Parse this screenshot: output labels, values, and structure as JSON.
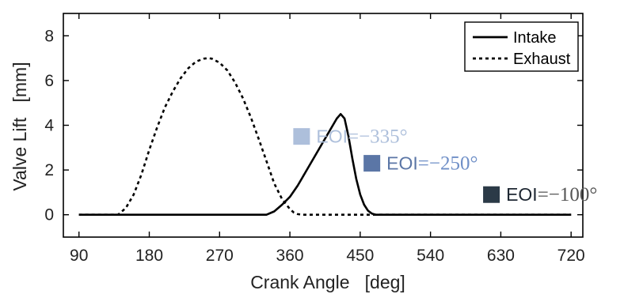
{
  "chart_data": {
    "type": "line",
    "title": "",
    "xlabel": "Crank Angle   [deg]",
    "ylabel": "Valve Lift   [mm]",
    "xlim": [
      70,
      735
    ],
    "ylim": [
      -1,
      9
    ],
    "xticks": [
      90,
      180,
      270,
      360,
      450,
      540,
      630,
      720
    ],
    "yticks": [
      0,
      2,
      4,
      6,
      8
    ],
    "grid": false,
    "legend_position": "top-right",
    "series": [
      {
        "name": "Intake",
        "line_style": "solid",
        "color": "#000000",
        "x": [
          90,
          330,
          340,
          350,
          360,
          370,
          380,
          390,
          400,
          410,
          420,
          425,
          430,
          435,
          440,
          445,
          450,
          455,
          460,
          465,
          470,
          720
        ],
        "y": [
          0,
          0,
          0.15,
          0.45,
          0.8,
          1.3,
          1.9,
          2.5,
          3.1,
          3.7,
          4.3,
          4.5,
          4.3,
          3.5,
          2.5,
          1.6,
          0.9,
          0.45,
          0.18,
          0.05,
          0,
          0
        ]
      },
      {
        "name": "Exhaust",
        "line_style": "dashed",
        "color": "#000000",
        "x": [
          90,
          140,
          150,
          160,
          170,
          180,
          190,
          200,
          210,
          220,
          230,
          240,
          250,
          255,
          260,
          270,
          280,
          290,
          300,
          310,
          320,
          330,
          340,
          350,
          360,
          365,
          370,
          375,
          720
        ],
        "y": [
          0,
          0,
          0.3,
          0.9,
          1.8,
          2.9,
          3.9,
          4.8,
          5.5,
          6.1,
          6.55,
          6.85,
          6.98,
          7.0,
          6.98,
          6.8,
          6.45,
          5.9,
          5.2,
          4.35,
          3.4,
          2.4,
          1.4,
          0.7,
          0.25,
          0.1,
          0.03,
          0,
          0
        ]
      }
    ],
    "annotations": [
      {
        "label": "EOI",
        "value": "=−335°",
        "x": 375,
        "y": 3.5,
        "color": "#adbfdb",
        "text_color": "#adbfdb",
        "value_color": "#adbfdb"
      },
      {
        "label": "EOI",
        "value": "=−250°",
        "x": 465,
        "y": 2.3,
        "color": "#5b76a6",
        "text_color": "#5b76a6",
        "value_color": "#6f8fc7"
      },
      {
        "label": "EOI",
        "value": "=−100°",
        "x": 618,
        "y": 0.9,
        "color": "#2b3a47",
        "text_color": "#1d2631",
        "value_color": "#555555"
      }
    ]
  }
}
